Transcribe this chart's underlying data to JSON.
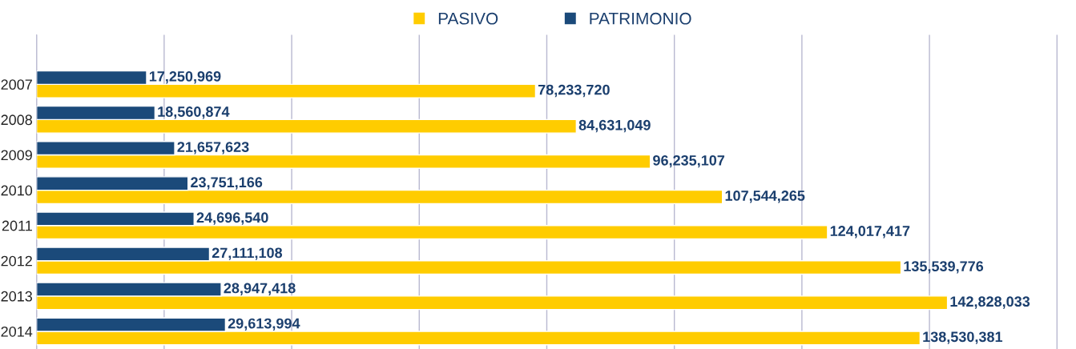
{
  "chart_data": {
    "type": "bar",
    "orientation": "horizontal",
    "categories": [
      "2007",
      "2008",
      "2009",
      "2010",
      "2011",
      "2012",
      "2013",
      "2014"
    ],
    "series": [
      {
        "name": "PASIVO",
        "color": "#ffcc00",
        "values": [
          78233720,
          84631049,
          96235107,
          107544265,
          124017417,
          135539776,
          142828033,
          138530381
        ],
        "value_labels": [
          "78,233,720",
          "84,631,049",
          "96,235,107",
          "107,544,265",
          "124,017,417",
          "135,539,776",
          "142,828,033",
          "138,530,381"
        ]
      },
      {
        "name": "PATRIMONIO",
        "color": "#1b4a7a",
        "values": [
          17250969,
          18560874,
          21657623,
          23751166,
          24696540,
          27111108,
          28947418,
          29613994
        ],
        "value_labels": [
          "17,250,969",
          "18,560,874",
          "21,657,623",
          "23,751,166",
          "24,696,540",
          "27,111,108",
          "28,947,418",
          "29,613,994"
        ]
      }
    ],
    "grid": "x",
    "legend": "top",
    "tick_labels": "y"
  }
}
